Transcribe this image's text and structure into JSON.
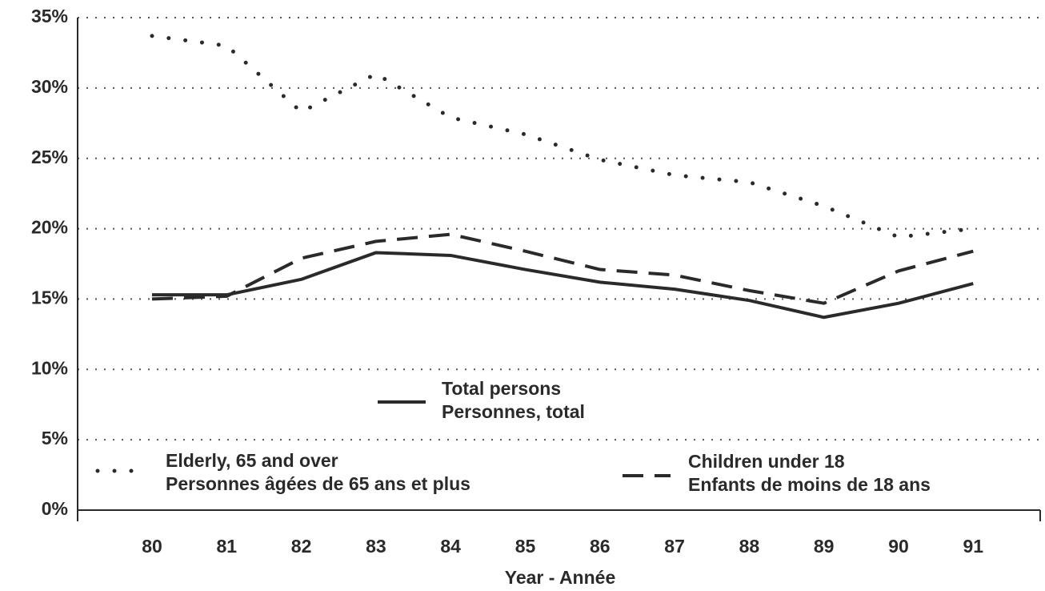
{
  "chart_data": {
    "type": "line",
    "xlabel": "Year - Année",
    "categories": [
      "80",
      "81",
      "82",
      "83",
      "84",
      "85",
      "86",
      "87",
      "88",
      "89",
      "90",
      "91"
    ],
    "series": [
      {
        "name": [
          "Total persons",
          "Personnes, total"
        ],
        "color": "#2a2a2a",
        "style": "solid",
        "values": [
          15.3,
          15.3,
          16.4,
          18.3,
          18.1,
          17.1,
          16.2,
          15.7,
          14.9,
          13.7,
          14.7,
          16.1
        ]
      },
      {
        "name": [
          "Elderly, 65 and over",
          "Personnes âgées de 65 ans et plus"
        ],
        "color": "#2a2a2a",
        "style": "dotted",
        "values": [
          33.7,
          33.0,
          28.3,
          31.0,
          27.9,
          26.7,
          24.9,
          23.8,
          23.3,
          21.6,
          19.4,
          20.0
        ]
      },
      {
        "name": [
          "Children under 18",
          "Enfants de moins de 18 ans"
        ],
        "color": "#2a2a2a",
        "style": "dashed",
        "values": [
          15.0,
          15.2,
          17.9,
          19.1,
          19.6,
          18.4,
          17.1,
          16.7,
          15.6,
          14.7,
          17.0,
          18.4
        ]
      }
    ],
    "ylim": [
      0,
      35
    ],
    "yticks": [
      {
        "value": 0,
        "label": "0%"
      },
      {
        "value": 5,
        "label": "5%"
      },
      {
        "value": 10,
        "label": "10%"
      },
      {
        "value": 15,
        "label": "15%"
      },
      {
        "value": 20,
        "label": "20%"
      },
      {
        "value": 25,
        "label": "25%"
      },
      {
        "value": 30,
        "label": "30%"
      },
      {
        "value": 35,
        "label": "35%"
      }
    ],
    "grid": true
  }
}
